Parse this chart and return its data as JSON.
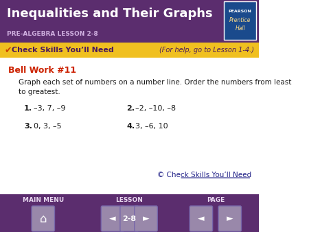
{
  "title": "Inequalities and Their Graphs",
  "subtitle": "PRE-ALGEBRA LESSON 2-8",
  "header_bg": "#5b2d6e",
  "yellow_bar_bg": "#f0c020",
  "yellow_bar_text": "Check Skills You’ll Need",
  "yellow_bar_right": "(For help, go to Lesson 1-4.)",
  "yellow_bar_text_color": "#4a1a5c",
  "bell_work_label": "Bell Work #11",
  "bell_work_color": "#cc2200",
  "instruction_line1": "Graph each set of numbers on a number line. Order the numbers from least",
  "instruction_line2": "to greatest.",
  "items": [
    {
      "num": "1.",
      "text": "–3, 7, –9"
    },
    {
      "num": "2.",
      "text": "–2, –10, –8"
    },
    {
      "num": "3.",
      "text": "0, 3, –5"
    },
    {
      "num": "4.",
      "text": "3, –6, 10"
    }
  ],
  "bottom_link": "© Check Skills You’ll Need",
  "footer_bg": "#5b2d6e",
  "footer_text_color": "#e8d8f0",
  "footer_items": [
    "MAIN MENU",
    "LESSON",
    "PAGE"
  ],
  "lesson_label": "2-8",
  "pearson_box_color": "#1a4a8c",
  "white": "#ffffff",
  "body_bg": "#ffffff",
  "body_text_color": "#1a1a1a",
  "item_numcolor": "#1a1a1a",
  "checkmark_color": "#cc4400",
  "link_color": "#222288",
  "btn_color": "#9988aa",
  "btn_edge_color": "#7766aa"
}
